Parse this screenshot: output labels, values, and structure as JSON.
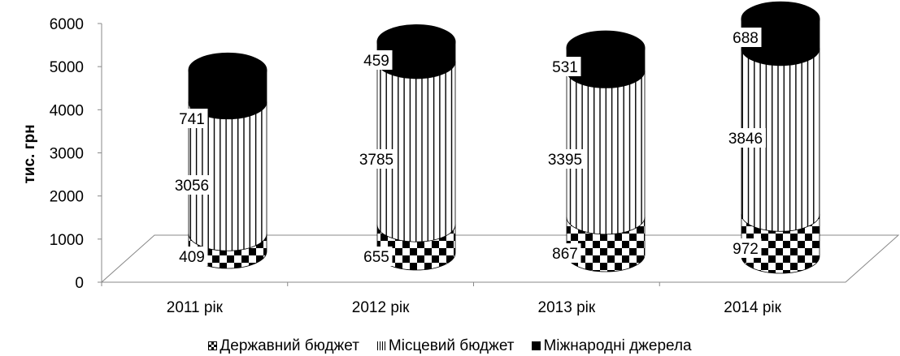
{
  "chart_data": {
    "type": "bar",
    "style": "3d-cylinder-stacked",
    "title": "",
    "xlabel": "",
    "ylabel": "тис. грн",
    "ylim": [
      0,
      6000
    ],
    "yticks": [
      "0",
      "1000",
      "2000",
      "3000",
      "4000",
      "5000",
      "6000"
    ],
    "categories": [
      "2011 рік",
      "2012 рік",
      "2013 рік",
      "2014 рік"
    ],
    "series": [
      {
        "name": "Державний бюджет",
        "values": [
          409,
          655,
          867,
          972
        ],
        "labels": [
          "409",
          "655",
          "867",
          "972"
        ],
        "pattern": "checkerboard"
      },
      {
        "name": "Місцевий бюджет",
        "values": [
          3056,
          3785,
          3395,
          3846
        ],
        "labels": [
          "3056",
          "3785",
          "3395",
          "3846"
        ],
        "pattern": "vertical-lines"
      },
      {
        "name": "Міжнародні джерела",
        "values": [
          741,
          459,
          531,
          688
        ],
        "labels": [
          "741",
          "459",
          "531",
          "688"
        ],
        "pattern": "solid-black"
      }
    ],
    "legend_position": "bottom",
    "grid": false
  }
}
